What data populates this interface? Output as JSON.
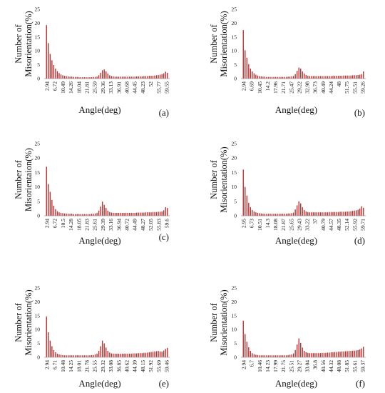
{
  "figure": {
    "bar_color": "#c0302f",
    "axis_color": "#9a9a9a"
  },
  "chart_data": [
    {
      "type": "bar",
      "panel_label": "(a)",
      "title": "",
      "ylabel_line1": "Number of",
      "ylabel_line2": "Misorientation(%)",
      "xlabel": "Angle(deg)",
      "ylim": [
        0,
        25
      ],
      "yticks": [
        "0",
        "5",
        "10",
        "15",
        "20",
        "25"
      ],
      "xticks": [
        "2.94",
        "6.72",
        "10.49",
        "14.26",
        "18.04",
        "21.81",
        "25.59",
        "29.36",
        "33.13",
        "36.91",
        "40.68",
        "44.45",
        "48.23",
        "52",
        "55.77",
        "59.55"
      ],
      "x_start": 2.0,
      "x_step": 0.944,
      "values": [
        19.3,
        12.8,
        8.9,
        6.6,
        4.9,
        3.6,
        2.7,
        2.0,
        1.5,
        1.2,
        1.0,
        0.9,
        0.8,
        0.7,
        0.7,
        0.6,
        0.6,
        0.6,
        0.5,
        0.5,
        0.5,
        0.5,
        0.5,
        0.5,
        0.5,
        0.5,
        0.6,
        0.6,
        0.7,
        1.2,
        2.1,
        3.0,
        3.3,
        2.6,
        1.8,
        1.2,
        0.9,
        0.8,
        0.7,
        0.7,
        0.7,
        0.7,
        0.7,
        0.7,
        0.7,
        0.7,
        0.7,
        0.7,
        0.7,
        0.7,
        0.8,
        0.8,
        0.8,
        0.8,
        0.9,
        0.9,
        0.9,
        1.0,
        1.0,
        1.0,
        1.1,
        1.2,
        1.3,
        1.4,
        1.6,
        1.9,
        2.5,
        2.1
      ]
    },
    {
      "type": "bar",
      "panel_label": "(b)",
      "title": "",
      "ylabel_line1": "Number of",
      "ylabel_line2": "Misorientation(%)",
      "xlabel": "Angle(deg)",
      "ylim": [
        0,
        25
      ],
      "yticks": [
        "0",
        "5",
        "10",
        "15",
        "20",
        "25"
      ],
      "xticks": [
        "2.94",
        "6.69",
        "10.45",
        "14.2",
        "17.96",
        "21.71",
        "25.47",
        "29.22",
        "32.98",
        "36.73",
        "40.49",
        "44.24",
        "48",
        "51.75",
        "55.51",
        "59.26"
      ],
      "x_start": 2.0,
      "x_step": 0.939,
      "values": [
        17.5,
        10.2,
        7.5,
        5.2,
        3.6,
        2.6,
        1.9,
        1.4,
        1.1,
        0.9,
        0.8,
        0.7,
        0.7,
        0.6,
        0.6,
        0.6,
        0.6,
        0.6,
        0.6,
        0.6,
        0.6,
        0.6,
        0.6,
        0.6,
        0.6,
        0.7,
        0.7,
        0.8,
        0.9,
        1.6,
        2.8,
        4.0,
        3.6,
        2.6,
        1.8,
        1.3,
        1.0,
        0.9,
        0.9,
        0.9,
        0.9,
        0.9,
        0.9,
        0.9,
        0.9,
        0.9,
        0.9,
        0.9,
        0.9,
        0.9,
        1.0,
        1.0,
        1.0,
        1.0,
        1.0,
        1.0,
        1.1,
        1.1,
        1.1,
        1.1,
        1.1,
        1.2,
        1.2,
        1.2,
        1.3,
        1.4,
        1.6,
        2.6
      ]
    },
    {
      "type": "bar",
      "panel_label": "(c)",
      "title": "",
      "ylabel_line1": "Number of",
      "ylabel_line2": "Misorientaion(%)",
      "xlabel": "Angle(deg)",
      "ylim": [
        0,
        25
      ],
      "yticks": [
        "0",
        "5",
        "10",
        "15",
        "20",
        "25"
      ],
      "xticks": [
        "2.94",
        "6.72",
        "10.5",
        "14.28",
        "18.05",
        "21.83",
        "25.61",
        "29.39",
        "33.16",
        "36.94",
        "40.72",
        "44.49",
        "48.27",
        "52.05",
        "55.83",
        "59.6"
      ],
      "x_start": 2.0,
      "x_step": 0.945,
      "values": [
        17.0,
        11.0,
        8.3,
        5.5,
        3.5,
        2.3,
        1.6,
        1.2,
        1.0,
        0.9,
        0.8,
        0.8,
        0.7,
        0.7,
        0.7,
        0.6,
        0.6,
        0.6,
        0.6,
        0.6,
        0.6,
        0.6,
        0.6,
        0.6,
        0.6,
        0.7,
        0.7,
        0.8,
        1.0,
        1.8,
        3.2,
        4.9,
        3.8,
        2.7,
        1.8,
        1.3,
        1.1,
        1.0,
        1.0,
        1.0,
        1.0,
        1.0,
        1.0,
        1.0,
        1.0,
        1.0,
        1.0,
        1.0,
        1.0,
        1.0,
        1.1,
        1.1,
        1.1,
        1.1,
        1.1,
        1.2,
        1.2,
        1.2,
        1.2,
        1.3,
        1.3,
        1.3,
        1.4,
        1.4,
        1.5,
        1.9,
        3.0,
        2.7
      ]
    },
    {
      "type": "bar",
      "panel_label": "(d)",
      "title": "",
      "ylabel_line1": "Number of",
      "ylabel_line2": "Misorientation(%)",
      "xlabel": "Angle(deg)",
      "ylim": [
        0,
        25
      ],
      "yticks": [
        "0",
        "5",
        "10",
        "15",
        "20",
        "25"
      ],
      "xticks": [
        "2.95",
        "6.73",
        "10.51",
        "14.3",
        "18.08",
        "21.87",
        "25.65",
        "29.43",
        "33.22",
        "37",
        "40.79",
        "44.57",
        "48.35",
        "52.14",
        "55.92",
        "59.71"
      ],
      "x_start": 2.0,
      "x_step": 0.946,
      "values": [
        16.0,
        10.0,
        7.0,
        4.5,
        3.0,
        2.0,
        1.5,
        1.2,
        1.0,
        0.9,
        0.8,
        0.7,
        0.7,
        0.7,
        0.7,
        0.7,
        0.7,
        0.7,
        0.7,
        0.7,
        0.7,
        0.7,
        0.7,
        0.7,
        0.7,
        0.8,
        0.8,
        0.9,
        1.1,
        2.2,
        3.6,
        5.0,
        4.3,
        3.0,
        2.0,
        1.5,
        1.3,
        1.2,
        1.2,
        1.2,
        1.2,
        1.2,
        1.2,
        1.2,
        1.2,
        1.2,
        1.2,
        1.2,
        1.3,
        1.3,
        1.3,
        1.3,
        1.3,
        1.3,
        1.4,
        1.4,
        1.4,
        1.4,
        1.5,
        1.5,
        1.6,
        1.7,
        1.8,
        1.9,
        2.1,
        2.5,
        3.3,
        2.8
      ]
    },
    {
      "type": "bar",
      "panel_label": "(e)",
      "title": "",
      "ylabel_line1": "Number of",
      "ylabel_line2": "Misorientation(%)",
      "xlabel": "Angle(deg)",
      "ylim": [
        0,
        25
      ],
      "yticks": [
        "0",
        "5",
        "10",
        "15",
        "20",
        "25"
      ],
      "xticks": [
        "2.94",
        "6.71",
        "10.48",
        "14.25",
        "18.01",
        "21.78",
        "25.55",
        "29.32",
        "33.08",
        "36.85",
        "40.62",
        "44.39",
        "48.15",
        "51.92",
        "55.69",
        "59.46"
      ],
      "x_start": 2.0,
      "x_step": 0.942,
      "values": [
        14.7,
        9.0,
        6.0,
        4.0,
        2.6,
        1.8,
        1.3,
        1.0,
        0.9,
        0.8,
        0.7,
        0.7,
        0.7,
        0.7,
        0.7,
        0.7,
        0.7,
        0.7,
        0.7,
        0.7,
        0.7,
        0.7,
        0.7,
        0.7,
        0.7,
        0.8,
        0.8,
        1.0,
        1.3,
        2.3,
        4.0,
        6.0,
        5.0,
        3.5,
        2.3,
        1.7,
        1.4,
        1.3,
        1.3,
        1.3,
        1.3,
        1.3,
        1.3,
        1.3,
        1.3,
        1.3,
        1.3,
        1.3,
        1.4,
        1.4,
        1.4,
        1.5,
        1.5,
        1.5,
        1.6,
        1.6,
        1.7,
        1.8,
        1.9,
        2.0,
        2.1,
        2.2,
        2.3,
        2.1,
        2.0,
        2.4,
        3.0,
        3.4
      ]
    },
    {
      "type": "bar",
      "panel_label": "(f)",
      "title": "",
      "ylabel_line1": "Number of",
      "ylabel_line2": "Misorientation(%)",
      "xlabel": "Angle(deg)",
      "ylim": [
        0,
        25
      ],
      "yticks": [
        "0",
        "5",
        "10",
        "15",
        "20",
        "25"
      ],
      "xticks": [
        "2.94",
        "6.7",
        "10.46",
        "14.23",
        "17.99",
        "21.75",
        "25.51",
        "29.27",
        "33.04",
        "36.8",
        "40.56",
        "44.32",
        "48.08",
        "51.85",
        "55.61",
        "59.37"
      ],
      "x_start": 2.0,
      "x_step": 0.941,
      "values": [
        13.2,
        8.4,
        5.6,
        3.6,
        2.3,
        1.5,
        1.1,
        0.9,
        0.8,
        0.7,
        0.7,
        0.7,
        0.7,
        0.7,
        0.7,
        0.7,
        0.7,
        0.7,
        0.7,
        0.7,
        0.7,
        0.7,
        0.7,
        0.7,
        0.7,
        0.8,
        0.9,
        1.0,
        1.4,
        2.6,
        4.6,
        6.8,
        5.2,
        3.5,
        2.3,
        1.8,
        1.6,
        1.5,
        1.5,
        1.5,
        1.5,
        1.5,
        1.5,
        1.5,
        1.6,
        1.6,
        1.6,
        1.7,
        1.7,
        1.8,
        1.8,
        1.9,
        1.9,
        2.0,
        2.0,
        2.1,
        2.1,
        2.2,
        2.2,
        2.3,
        2.3,
        2.4,
        2.4,
        2.5,
        2.6,
        2.8,
        3.2,
        3.8
      ]
    }
  ]
}
